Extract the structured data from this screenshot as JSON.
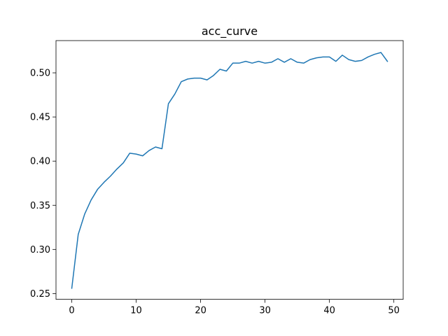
{
  "chart_data": {
    "type": "line",
    "title": "acc_curve",
    "xlabel": "",
    "ylabel": "",
    "xlim": [
      -2.45,
      51.45
    ],
    "ylim": [
      0.2435,
      0.5365
    ],
    "xticks": [
      0,
      10,
      20,
      30,
      40,
      50
    ],
    "xtick_labels": [
      "0",
      "10",
      "20",
      "30",
      "40",
      "50"
    ],
    "yticks": [
      0.25,
      0.3,
      0.35,
      0.4,
      0.45,
      0.5
    ],
    "ytick_labels": [
      "0.25",
      "0.30",
      "0.35",
      "0.40",
      "0.45",
      "0.50"
    ],
    "grid": false,
    "series": [
      {
        "color": "#1f77b4",
        "x": [
          0,
          1,
          2,
          3,
          4,
          5,
          6,
          7,
          8,
          9,
          10,
          11,
          12,
          13,
          14,
          15,
          16,
          17,
          18,
          19,
          20,
          21,
          22,
          23,
          24,
          25,
          26,
          27,
          28,
          29,
          30,
          31,
          32,
          33,
          34,
          35,
          36,
          37,
          38,
          39,
          40,
          41,
          42,
          43,
          44,
          45,
          46,
          47,
          48,
          49
        ],
        "values": [
          0.256,
          0.317,
          0.34,
          0.356,
          0.368,
          0.376,
          0.383,
          0.391,
          0.398,
          0.409,
          0.408,
          0.406,
          0.412,
          0.416,
          0.414,
          0.465,
          0.476,
          0.49,
          0.493,
          0.494,
          0.494,
          0.492,
          0.497,
          0.504,
          0.502,
          0.511,
          0.511,
          0.513,
          0.511,
          0.513,
          0.511,
          0.512,
          0.516,
          0.512,
          0.516,
          0.512,
          0.511,
          0.515,
          0.517,
          0.518,
          0.518,
          0.513,
          0.52,
          0.515,
          0.513,
          0.514,
          0.518,
          0.521,
          0.523,
          0.513
        ]
      }
    ]
  }
}
